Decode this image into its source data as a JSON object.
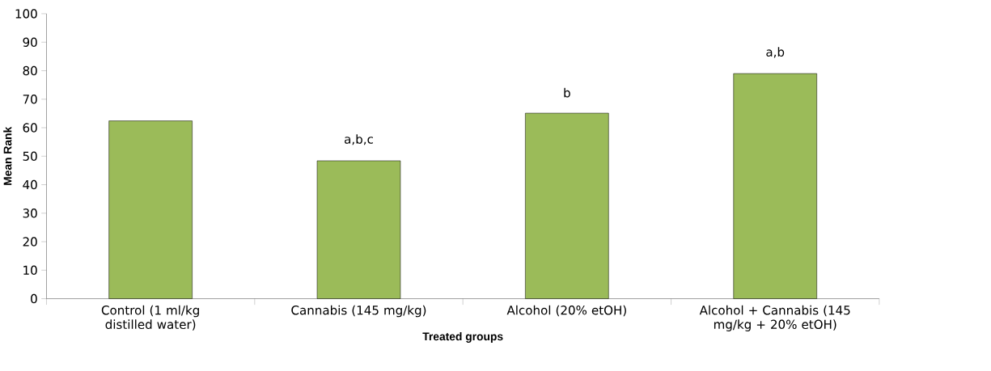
{
  "chart_data": {
    "type": "bar",
    "xlabel": "Treated groups",
    "ylabel": "Mean Rank",
    "categories": [
      "Control (1 ml/kg distilled water)",
      "Cannabis (145 mg/kg)",
      "Alcohol (20% etOH)",
      "Alcohol + Cannabis (145 mg/kg + 20% etOH)"
    ],
    "values": [
      62.4,
      48.4,
      65.1,
      79.0
    ],
    "color": "#9bbb59",
    "ylim": [
      0,
      100
    ],
    "yticks": [
      0,
      10,
      20,
      30,
      40,
      50,
      60,
      70,
      80,
      90,
      100
    ],
    "annotations": [
      {
        "text": "a,b,c",
        "x": "Cannabis (145 mg/kg)",
        "y": 48.4
      },
      {
        "text": "b",
        "x": "Alcohol (20% etOH)",
        "y": 65.1
      },
      {
        "text": "a,b",
        "x": "Alcohol + Cannabis (145 mg/kg + 20% etOH)",
        "y": 79.0
      }
    ]
  }
}
